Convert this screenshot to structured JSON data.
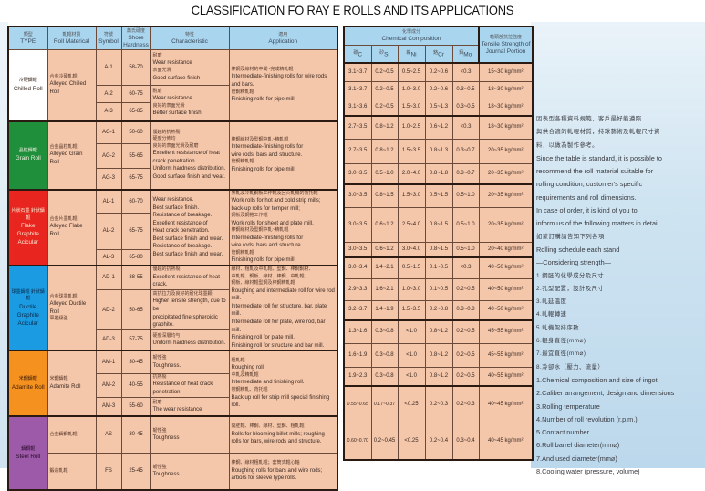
{
  "title": "CLASSIFICATION FO RAY E ROLLS AND ITS APPLICATIONS",
  "left_table": {
    "headers": [
      {
        "zh": "類型",
        "en": "TYPE"
      },
      {
        "zh": "軋輥材質",
        "en": "Roll Materical"
      },
      {
        "zh": "符號",
        "en": "Symbol"
      },
      {
        "zh": "蕭氏硬度",
        "en": "Shore Hardness"
      },
      {
        "zh": "特性",
        "en": "Characteristic"
      },
      {
        "zh": "適用",
        "en": "Application"
      }
    ],
    "groups": [
      {
        "type_zh": "冷硬鑄輥",
        "type_en": "Chilled Roll",
        "color": "#ffffff",
        "text_color": "#3a2a22",
        "material_zh": "合金冷硬軋輥",
        "material_en": "Alloyed Chilled Roll",
        "rows": [
          {
            "symbol": "A-1",
            "hardness": "58-70"
          },
          {
            "symbol": "A-2",
            "hardness": "60-75"
          },
          {
            "symbol": "A-3",
            "hardness": "65-85"
          }
        ],
        "characteristic": [
          {
            "span": 1,
            "lines": [
              "耐磨",
              "Wear resistance",
              "表面光滑",
              "Good surface finish"
            ]
          },
          {
            "span": 2,
            "lines": [
              "耐磨",
              "Wear resistance",
              "良好的表面光滑",
              "Better surface finish"
            ]
          }
        ],
        "application": [
          {
            "span": 3,
            "lines": [
              "棒鋼及線材的中間~完成精軋輥",
              "Intermediate-finishing rolls for wire rods and bars.",
              "管鋼精軋輥",
              "Finishing rolls for pipe mill"
            ]
          }
        ]
      },
      {
        "type_zh": "晶粒鑄輥",
        "type_en": "Grain Roll",
        "color": "#1f8f3c",
        "text_color": "#f0f0e0",
        "material_zh": "合金晶粒軋輥",
        "material_en": "Alloyed Grain Roll",
        "rows": [
          {
            "symbol": "AG-1",
            "hardness": "50-60"
          },
          {
            "symbol": "AG-2",
            "hardness": "55-65"
          },
          {
            "symbol": "AG-3",
            "hardness": "65-75"
          }
        ],
        "characteristic": [
          {
            "span": 3,
            "lines": [
              "優越的抗熱裂",
              "硬度分佈均",
              "良好的表面光滑及耐磨",
              "Excellent resistance of heat",
              "crack penetration.",
              "Uniform hardness distribution.",
              "Good surface finish and wear."
            ]
          }
        ],
        "application": [
          {
            "span": 3,
            "lines": [
              "棒鋼線材及型鋼中軋~精軋輥",
              "Intermediate-finishing rolls for",
              "wire rods, bars and structure.",
              "管鋼精軋輥",
              "Finishing rolls for pipe mill."
            ]
          }
        ]
      },
      {
        "type_zh": "片狀石墨 針狀鑄輥",
        "type_en": "Flake Graphite Acicular",
        "color": "#e8251f",
        "text_color": "#f8e8d0",
        "material_zh": "合金片墨軋輥",
        "material_en": "Alloyed Flake Roll",
        "rows": [
          {
            "symbol": "AL-1",
            "hardness": "60-70"
          },
          {
            "symbol": "AL-2",
            "hardness": "65-75"
          },
          {
            "symbol": "AL-3",
            "hardness": "65-80"
          }
        ],
        "characteristic": [
          {
            "span": 3,
            "lines": [
              "Wear resistance.",
              "Best surface finish.",
              "Resistance of breakage.",
              "Excellent resistance of",
              "Heat crack penetration.",
              "Best surface finish and wear.",
              "Resistance of breakage.",
              "Best surface finish and wear."
            ]
          }
        ],
        "application": [
          {
            "span": 3,
            "lines": [
              "熱軋及冷軋鋼板工作輥及回火軋機的背托輥",
              "Work rolls for hot and cold strip mills;",
              "back-up rolls for temper mill;",
              "鋼板及鋼捲工作輥",
              "Work rolls for sheet and plate mill.",
              "棒鋼線材及型鋼中軋~精軋輥",
              "Intermediate-finishing rolls for",
              "wire rods, bars and structure.",
              "管鋼精軋輥",
              "Finishing rolls for pipe mill."
            ]
          }
        ]
      },
      {
        "type_zh": "球墨鑄輥 針狀鑄輥",
        "type_en": "Ductile Graphite Acicular",
        "color": "#1a9be2",
        "text_color": "#0d2a4a",
        "material_zh": "合金球墨軋輥",
        "material_en": "Alloyed Ductile Roll",
        "material_zh2": "軍艦級強",
        "rows": [
          {
            "symbol": "AD-1",
            "hardness": "38-55"
          },
          {
            "symbol": "AD-2",
            "hardness": "50-65"
          },
          {
            "symbol": "AD-3",
            "hardness": "57-75"
          }
        ],
        "characteristic": [
          {
            "span": 1,
            "lines": [
              "優越的抗熱裂",
              "Excellent resistance of heat crack."
            ]
          },
          {
            "span": 1,
            "lines": [
              "高抗拉力及良好的耐化球墨顆",
              "Higher tensile strength, due to be",
              "precipitated fine spheroidic graphite."
            ]
          },
          {
            "span": 1,
            "lines": [
              "硬度深層均勻",
              "Uniform hardness distribution."
            ]
          }
        ],
        "application": [
          {
            "span": 3,
            "lines": [
              "線材、粗軋及中軋輥、型鋼、棒鋼鋼材、",
              "中軋輥、鋼板、線材、棒鋼、中軋輥、",
              "鋼板、線材輥型鋼及棒鋼精軋輥",
              "Roughing and intermediate roll for wire rod mill.",
              "Intermediate roll for structure, bar, plate mill.",
              "Intermediate roll for plate, wire rod, bar mill.",
              "Finishing roll for plate mill.",
              "Finishing roll for structure and bar mill."
            ]
          }
        ]
      },
      {
        "type_zh": "米鋼鑄輥",
        "type_en": "Adamite Roll",
        "color": "#f5921f",
        "text_color": "#3a1a08",
        "material_zh": "米鋼鑄輥",
        "material_en": "Adamite Roll",
        "rows": [
          {
            "symbol": "AM-1",
            "hardness": "30-45"
          },
          {
            "symbol": "AM-2",
            "hardness": "40-55"
          },
          {
            "symbol": "AM-3",
            "hardness": "55-60"
          }
        ],
        "characteristic": [
          {
            "span": 1,
            "lines": [
              "韌性強",
              "Toughness."
            ]
          },
          {
            "span": 1,
            "lines": [
              "抗熱裂",
              "Resistance of heat crack penetration"
            ]
          },
          {
            "span": 1,
            "lines": [
              "耐磨",
              "The wear resistance"
            ]
          }
        ],
        "application": [
          {
            "span": 3,
            "lines": [
              "粗軋輥",
              "Roughing roll.",
              "中軋及精軋輥",
              "Intermediate and finishing roll.",
              "帶鋼精軋、背托輥",
              "Back up roll for strip mill special finishing roll."
            ]
          }
        ]
      },
      {
        "type_zh": "鑄鋼輥",
        "type_en": "Steel Roll",
        "color": "#9c5aa8",
        "text_color": "#2a0a2a",
        "material_zh": "合金鑄鋼軋輥",
        "material_en": "",
        "material2_zh": "鍛造軋輥",
        "rows": [
          {
            "symbol": "AS",
            "hardness": "30-45"
          },
          {
            "symbol": "FS",
            "hardness": "25-45"
          }
        ],
        "characteristic": [
          {
            "span": 1,
            "lines": [
              "韌性強",
              "Toughness"
            ]
          },
          {
            "span": 1,
            "lines": [
              "韌性強",
              "Toughness"
            ]
          }
        ],
        "application": [
          {
            "span": 1,
            "lines": [
              "開胚輥、棒鋼、線材、型鋼、粗軋輥",
              "Rolls for blooming billet mills; roughing",
              "rolls for bars, wire rods and structure."
            ]
          },
          {
            "span": 1,
            "lines": [
              "棒鋼、線材粗軋輥；套筒式輥心軸",
              "Roughing rolls for bars and wire rods;",
              "arbors for sleeve type rolls."
            ]
          }
        ]
      }
    ]
  },
  "right_table": {
    "chem_header_zh": "化學成分",
    "chem_header_en": "Chemical Composition",
    "tensile_header_zh": "軸頸部抗拉強度",
    "tensile_header_en": "Tensile Strength of Journal Portion",
    "elements": [
      {
        "zh": "碳",
        "sym": "C"
      },
      {
        "zh": "矽",
        "sym": "Si"
      },
      {
        "zh": "鎳",
        "sym": "Ni"
      },
      {
        "zh": "鉻",
        "sym": "Cr"
      },
      {
        "zh": "鉬",
        "sym": "Mo"
      }
    ],
    "groups": [
      [
        [
          "3.1~3.7",
          "0.2~0.5",
          "0.5~2.5",
          "0.2~0.6",
          "<0.3",
          "15~30 kg/mm²"
        ],
        [
          "3.1~3.7",
          "0.2~0.5",
          "1.0~3.0",
          "0.2~0.6",
          "0.3~0.5",
          "18~30 kg/mm²"
        ],
        [
          "3.1~3.6",
          "0.2~0.5",
          "1.5~3.0",
          "0.5~1.3",
          "0.3~0.5",
          "18~30 kg/mm²"
        ]
      ],
      [
        [
          "2.7~3.5",
          "0.8~1.2",
          "1.0~2.5",
          "0.6~1.2",
          "<0.3",
          "18~30 kg/mm²"
        ],
        [
          "2.7~3.5",
          "0.8~1.2",
          "1.5~3.5",
          "0.8~1.3",
          "0.3~0.7",
          "20~35 kg/mm²"
        ],
        [
          "3.0~3.5",
          "0.5~1.0",
          "2.0~4.0",
          "0.8~1.8",
          "0.3~0.7",
          "20~35 kg/mm²"
        ]
      ],
      [
        [
          "3.0~3.5",
          "0.8~1.5",
          "1.5~3.0",
          "0.5~1.5",
          "0.5~1.0",
          "20~35 kg/mm²"
        ],
        [
          "3.0~3.5",
          "0.6~1.2",
          "2.5~4.0",
          "0.8~1.5",
          "0.5~1.0",
          "20~35 kg/mm²"
        ],
        [
          "3.0~3.5",
          "0.6~1.2",
          "3.0~4.0",
          "0.8~1.5",
          "0.5~1.0",
          "20~40 kg/mm²"
        ]
      ],
      [
        [
          "3.0~3.4",
          "1.4~2.1",
          "0.5~1.5",
          "0.1~0.5",
          "<0.3",
          "40~50 kg/mm²"
        ],
        [
          "2.9~3.3",
          "1.6~2.1",
          "1.0~3.0",
          "0.1~0.5",
          "0.2~0.5",
          "40~50 kg/mm²"
        ],
        [
          "3.2~3.7",
          "1.4~1.9",
          "1.5~3.5",
          "0.2~0.8",
          "0.3~0.8",
          "40~50 kg/mm²"
        ]
      ],
      [
        [
          "1.3~1.6",
          "0.3~0.8",
          "<1.0",
          "0.8~1.2",
          "0.2~0.5",
          "45~55 kg/mm²"
        ],
        [
          "1.6~1.9",
          "0.3~0.8",
          "<1.0",
          "0.8~1.2",
          "0.2~0.5",
          "45~55 kg/mm²"
        ],
        [
          "1.9~2.3",
          "0.3~0.8",
          "<1.0",
          "0.8~1.2",
          "0.2~0.5",
          "40~55 kg/mm²"
        ]
      ],
      [
        [
          "0.55~0.65",
          "0.17~0.37",
          "<0.25",
          "0.2~0.3",
          "0.2~0.3",
          "40~45 kg/mm²"
        ],
        [
          "0.60~0.70",
          "0.2~0.45",
          "<0.25",
          "0.2~0.4",
          "0.3~0.4",
          "40~45 kg/mm²"
        ]
      ]
    ]
  },
  "notes": [
    {
      "zh": true,
      "text": "因表型各種資料規範，客戶最好能遵照"
    },
    {
      "zh": true,
      "text": "與供合適的軋輥材質，持球藝術及軋輥尺寸資"
    },
    {
      "zh": true,
      "text": "料，以做為製作參考。"
    },
    {
      "zh": false,
      "text": "Since the table is standard, it is possible to"
    },
    {
      "zh": false,
      "text": "recommend the roll material suitable for"
    },
    {
      "zh": false,
      "text": " rolling condition, customer's specific"
    },
    {
      "zh": false,
      "text": "requirements and roll dimensions."
    },
    {
      "zh": false,
      "text": "In case of order, it is kind of you to"
    },
    {
      "zh": false,
      "text": "inform us of the following matters in detail."
    },
    {
      "zh": true,
      "text": "如蒙訂購請告知下列各項"
    },
    {
      "zh": false,
      "text": "Rolling schedule each stand"
    },
    {
      "zh": false,
      "text": "—Considering strength—"
    },
    {
      "zh": true,
      "text": "1.鋼胚的化學成分及尺寸"
    },
    {
      "zh": true,
      "text": "2.孔型配置，設計及尺寸"
    },
    {
      "zh": true,
      "text": "3.軋延溫度"
    },
    {
      "zh": true,
      "text": "4.軋輥轉速"
    },
    {
      "zh": true,
      "text": "5.軋機架排序數"
    },
    {
      "zh": true,
      "text": "6.輥身直徑(mm⌀)"
    },
    {
      "zh": true,
      "text": "7.最宜直徑(mm⌀)"
    },
    {
      "zh": true,
      "text": "8.冷卻水（壓力、流量）"
    },
    {
      "zh": false,
      "text": "1.Chemical composition and size of ingot."
    },
    {
      "zh": false,
      "text": "2.Caliber arrangement, design and dimensions"
    },
    {
      "zh": false,
      "text": "3.Rolling temperature"
    },
    {
      "zh": false,
      "text": "4.Number of roll revolution (r.p.m.)"
    },
    {
      "zh": false,
      "text": "5.Contact number"
    },
    {
      "zh": false,
      "text": "6.Roll barrel diameter(mm⌀)"
    },
    {
      "zh": false,
      "text": "7.And used diameter(mm⌀)"
    },
    {
      "zh": false,
      "text": "8.Cooling water (pressure, volume)"
    }
  ]
}
